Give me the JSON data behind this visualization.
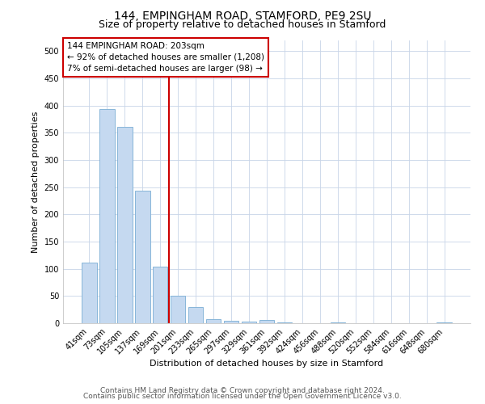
{
  "title1": "144, EMPINGHAM ROAD, STAMFORD, PE9 2SU",
  "title2": "Size of property relative to detached houses in Stamford",
  "xlabel": "Distribution of detached houses by size in Stamford",
  "ylabel": "Number of detached properties",
  "bar_labels": [
    "41sqm",
    "73sqm",
    "105sqm",
    "137sqm",
    "169sqm",
    "201sqm",
    "233sqm",
    "265sqm",
    "297sqm",
    "329sqm",
    "361sqm",
    "392sqm",
    "424sqm",
    "456sqm",
    "488sqm",
    "520sqm",
    "552sqm",
    "584sqm",
    "616sqm",
    "648sqm",
    "680sqm"
  ],
  "bar_values": [
    111,
    393,
    361,
    243,
    104,
    50,
    30,
    8,
    5,
    3,
    6,
    1,
    0,
    0,
    1,
    0,
    0,
    0,
    0,
    0,
    1
  ],
  "bar_color": "#c5d9f0",
  "bar_edge_color": "#7aadd4",
  "vline_color": "#cc0000",
  "annotation_text": "144 EMPINGHAM ROAD: 203sqm\n← 92% of detached houses are smaller (1,208)\n7% of semi-detached houses are larger (98) →",
  "annotation_box_color": "#cc0000",
  "ylim": [
    0,
    520
  ],
  "yticks": [
    0,
    50,
    100,
    150,
    200,
    250,
    300,
    350,
    400,
    450,
    500
  ],
  "background_color": "#ffffff",
  "grid_color": "#c8d4e8",
  "footer1": "Contains HM Land Registry data © Crown copyright and database right 2024.",
  "footer2": "Contains public sector information licensed under the Open Government Licence v3.0.",
  "title1_fontsize": 10,
  "title2_fontsize": 9,
  "axis_label_fontsize": 8,
  "tick_fontsize": 7,
  "annotation_fontsize": 7.5,
  "footer_fontsize": 6.5,
  "vline_x_index": 5
}
